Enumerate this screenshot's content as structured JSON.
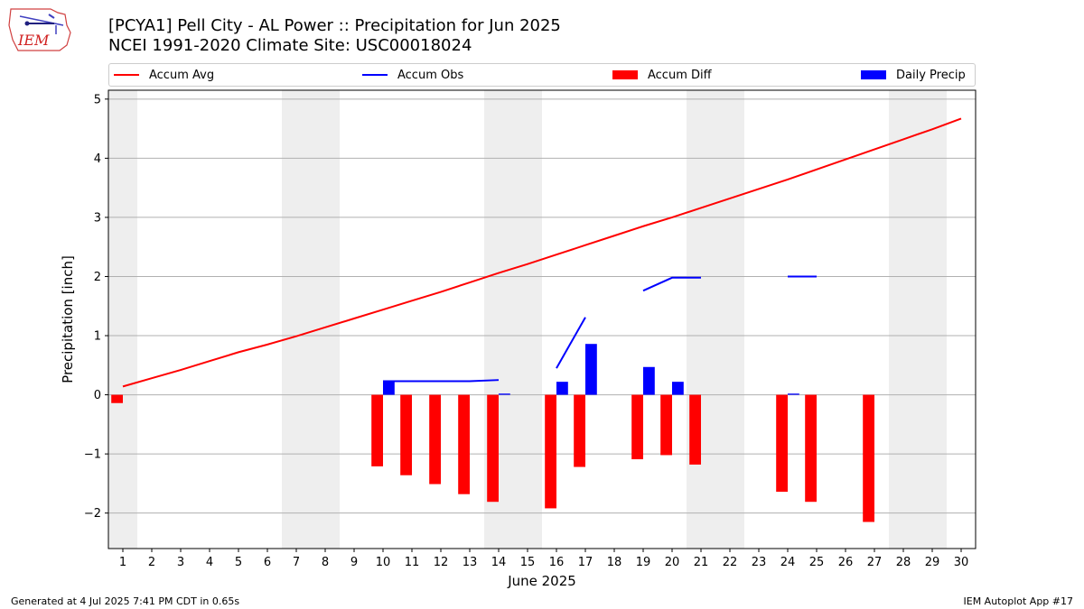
{
  "header": {
    "title_line1": "[PCYA1] Pell City - AL Power :: Precipitation for Jun 2025",
    "title_line2": "NCEI 1991-2020 Climate Site: USC00018024",
    "logo_text": "IEM"
  },
  "footer": {
    "left": "Generated at 4 Jul 2025 7:41 PM CDT in 0.65s",
    "right": "IEM Autoplot App #17"
  },
  "legend": {
    "accum_avg": "Accum Avg",
    "accum_obs": "Accum Obs",
    "accum_diff": "Accum Diff",
    "daily_precip": "Daily Precip"
  },
  "colors": {
    "avg": "#ff0000",
    "obs": "#0000ff",
    "diff": "#ff0000",
    "daily": "#0000ff",
    "weekend_shade": "#eeeeee",
    "grid": "#b0b0b0"
  },
  "chart_data": {
    "type": "bar",
    "xlabel": "June 2025",
    "ylabel": "Precipitation [inch]",
    "x": [
      1,
      2,
      3,
      4,
      5,
      6,
      7,
      8,
      9,
      10,
      11,
      12,
      13,
      14,
      15,
      16,
      17,
      18,
      19,
      20,
      21,
      22,
      23,
      24,
      25,
      26,
      27,
      28,
      29,
      30
    ],
    "xlim": [
      0.5,
      30.5
    ],
    "ylim": [
      -2.6,
      5.15
    ],
    "yticks": [
      -2,
      -1,
      0,
      1,
      2,
      3,
      4,
      5
    ],
    "ytick_labels": [
      "−2",
      "−1",
      "0",
      "1",
      "2",
      "3",
      "4",
      "5"
    ],
    "grid": "horizontal",
    "legend_position": "top",
    "weekend_days": [
      1,
      7,
      8,
      14,
      15,
      21,
      22,
      28,
      29
    ],
    "series": [
      {
        "name": "Accum Avg",
        "kind": "line",
        "values": [
          0.14,
          0.28,
          0.42,
          0.57,
          0.72,
          0.85,
          0.99,
          1.14,
          1.29,
          1.44,
          1.59,
          1.74,
          1.9,
          2.06,
          2.21,
          2.37,
          2.53,
          2.69,
          2.85,
          3.0,
          3.16,
          3.32,
          3.48,
          3.64,
          3.81,
          3.98,
          4.15,
          4.32,
          4.49,
          4.67
        ]
      },
      {
        "name": "Accum Obs",
        "kind": "line",
        "values": [
          null,
          null,
          null,
          null,
          null,
          null,
          null,
          null,
          null,
          0.23,
          0.23,
          0.23,
          0.23,
          0.25,
          null,
          0.45,
          1.31,
          null,
          1.76,
          1.98,
          1.98,
          null,
          null,
          2.0,
          2.0,
          null,
          null,
          null,
          null,
          null
        ]
      },
      {
        "name": "Accum Diff",
        "kind": "bar",
        "values": [
          -0.14,
          null,
          null,
          null,
          null,
          null,
          null,
          null,
          null,
          -1.21,
          -1.36,
          -1.51,
          -1.68,
          -1.81,
          null,
          -1.92,
          -1.22,
          null,
          -1.09,
          -1.02,
          -1.18,
          null,
          null,
          -1.64,
          -1.81,
          null,
          -2.15,
          null,
          null,
          null
        ]
      },
      {
        "name": "Daily Precip",
        "kind": "bar",
        "values": [
          0,
          0,
          0,
          0,
          0,
          0,
          0,
          0,
          0,
          0.23,
          0,
          0,
          0,
          0.02,
          0,
          0.22,
          0.86,
          0,
          0.47,
          0.22,
          0,
          0,
          0,
          0.02,
          0,
          0,
          0,
          0,
          0,
          0
        ]
      }
    ]
  }
}
